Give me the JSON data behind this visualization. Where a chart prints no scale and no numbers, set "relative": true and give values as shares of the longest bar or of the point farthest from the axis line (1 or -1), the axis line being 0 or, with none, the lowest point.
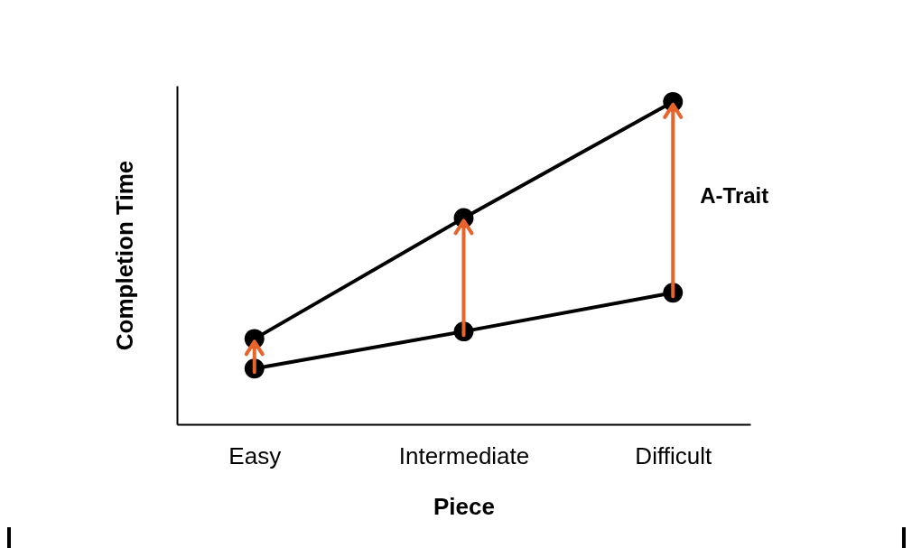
{
  "chart_data": {
    "type": "line",
    "xlabel": "Piece",
    "ylabel": "Completion Time",
    "categories": [
      "Easy",
      "Intermediate",
      "Difficult"
    ],
    "relative": true,
    "marker": "circle",
    "line_style": "solid",
    "annotations": [
      "A-Trait"
    ],
    "series": [
      {
        "color": "#000000",
        "values": [
          0.265,
          0.64,
          1
        ]
      },
      {
        "color": "#000000",
        "values": [
          0.173,
          0.288,
          0.408
        ]
      }
    ]
  }
}
